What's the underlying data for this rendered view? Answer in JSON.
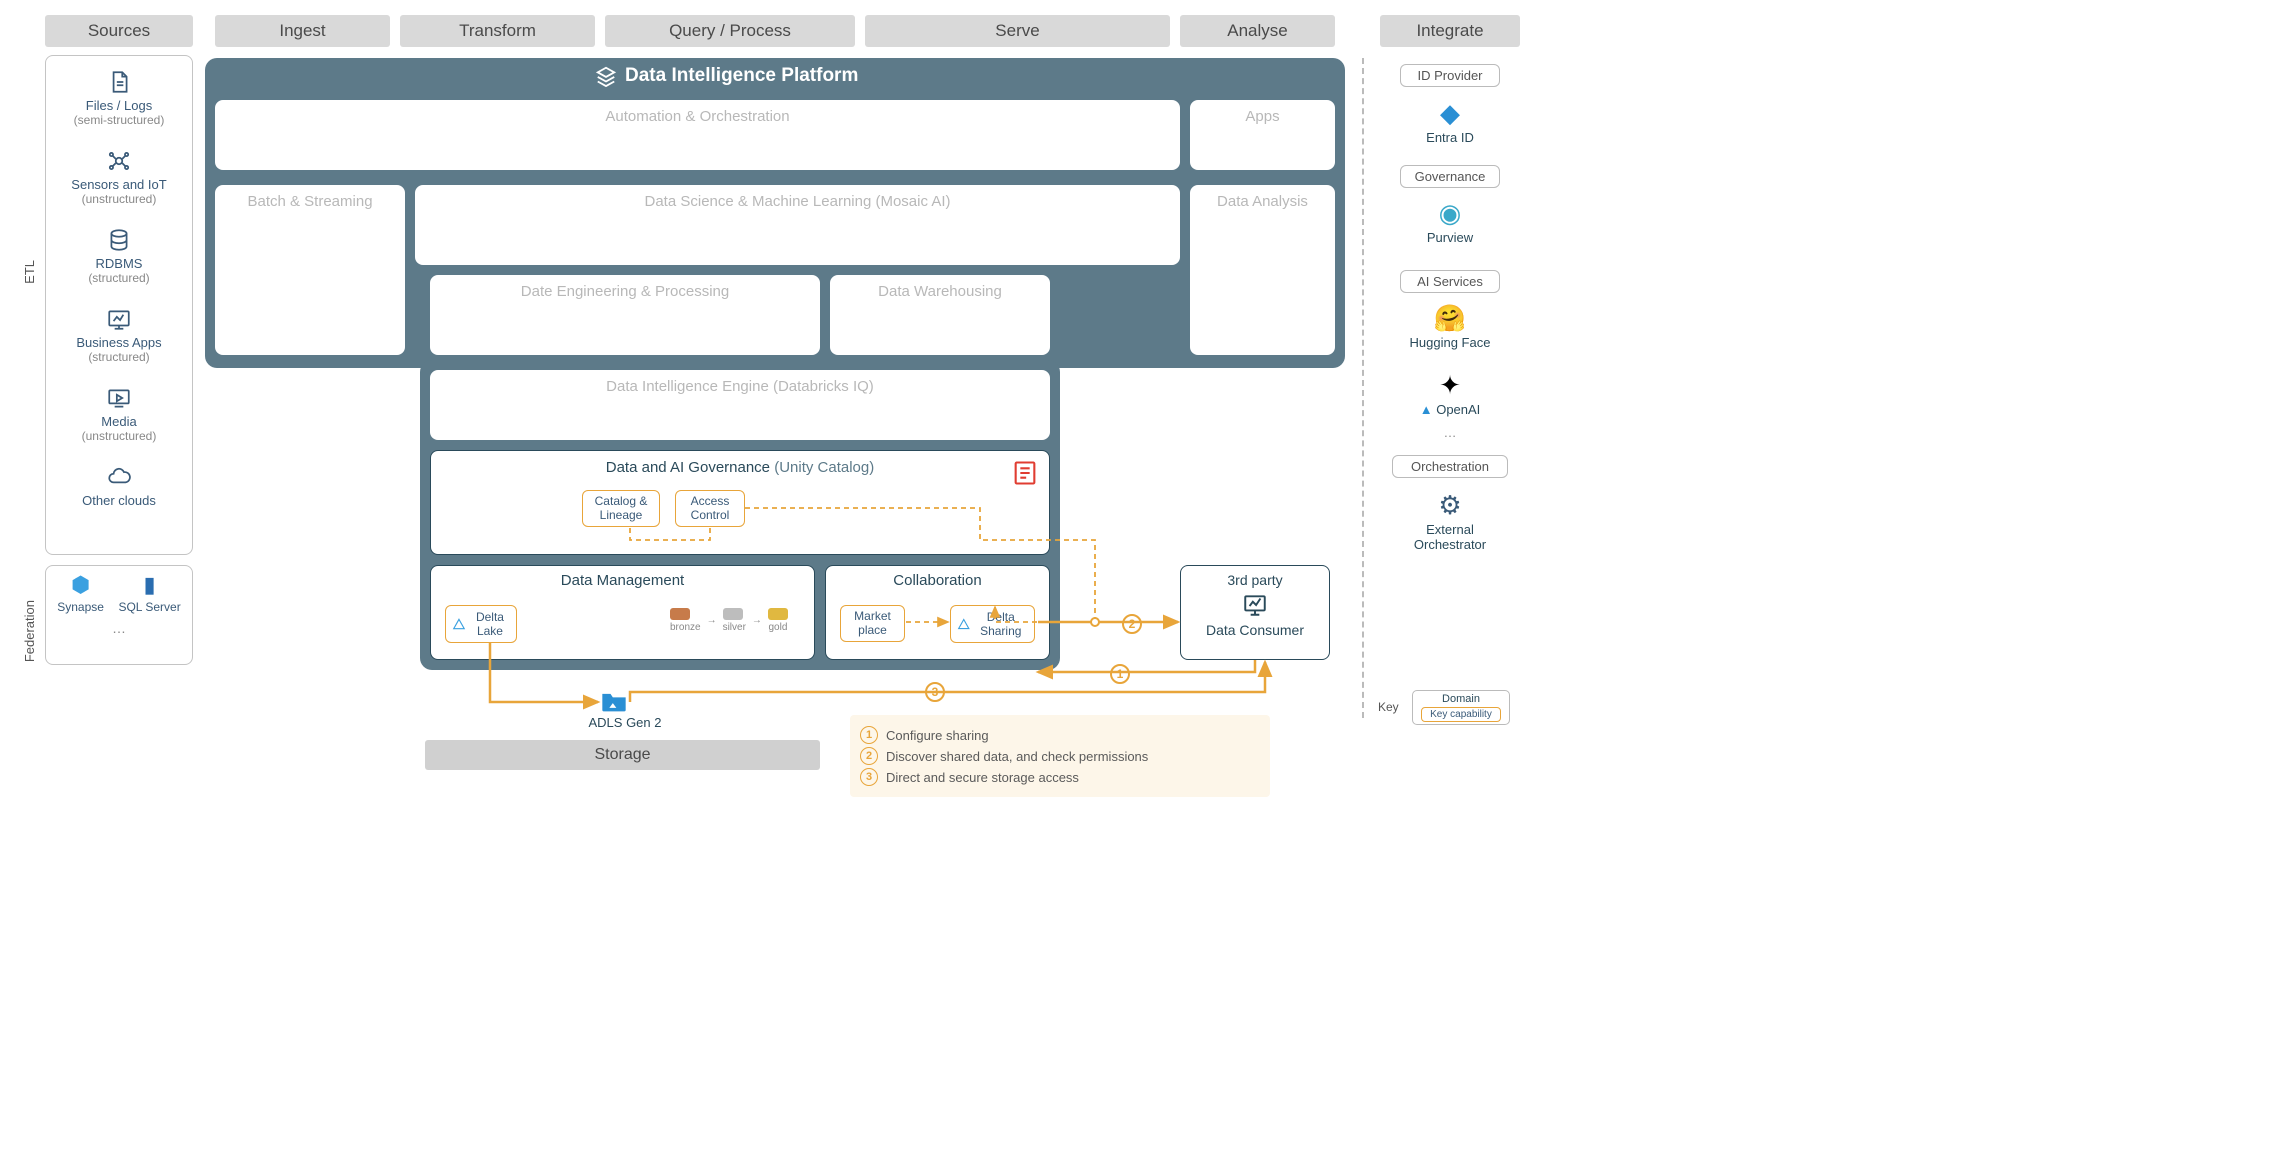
{
  "columns": {
    "sources": "Sources",
    "ingest": "Ingest",
    "transform": "Transform",
    "query": "Query / Process",
    "serve": "Serve",
    "analyse": "Analyse",
    "integrate": "Integrate"
  },
  "vlabels": {
    "etl": "ETL",
    "federation": "Federation"
  },
  "sources": [
    {
      "label": "Files / Logs",
      "sub": "(semi-structured)",
      "icon": "file"
    },
    {
      "label": "Sensors and IoT",
      "sub": "(unstructured)",
      "icon": "iot"
    },
    {
      "label": "RDBMS",
      "sub": "(structured)",
      "icon": "db"
    },
    {
      "label": "Business Apps",
      "sub": "(structured)",
      "icon": "app"
    },
    {
      "label": "Media",
      "sub": "(unstructured)",
      "icon": "media"
    },
    {
      "label": "Other clouds",
      "sub": "",
      "icon": "cloud"
    }
  ],
  "federation": {
    "items": [
      {
        "label": "Synapse"
      },
      {
        "label": "SQL Server"
      }
    ],
    "more": "…"
  },
  "platform": {
    "title": "Data Intelligence Platform",
    "boxes": {
      "automation": "Automation & Orchestration",
      "apps": "Apps",
      "batch": "Batch & Streaming",
      "dsml": "Data Science & Machine Learning  (Mosaic AI)",
      "analysis": "Data Analysis",
      "eng": "Date Engineering & Processing",
      "dwh": "Data Warehousing",
      "engine": "Data Intelligence Engine  (Databricks IQ)"
    },
    "governance": {
      "title": "Data and AI Governance",
      "anno": "(Unity Catalog)",
      "catalog": "Catalog & Lineage",
      "access": "Access Control"
    },
    "mgmt": {
      "title": "Data Management",
      "delta": "Delta Lake",
      "bronze": "bronze",
      "silver": "silver",
      "gold": "gold"
    },
    "collab": {
      "title": "Collaboration",
      "market": "Market place",
      "sharing": "Delta Sharing"
    }
  },
  "third_party": {
    "title": "3rd party",
    "consumer": "Data Consumer"
  },
  "storage": {
    "adls": "ADLS Gen 2",
    "label": "Storage"
  },
  "steps": [
    {
      "n": "1",
      "text": "Configure sharing"
    },
    {
      "n": "2",
      "text": "Discover shared data, and check permissions"
    },
    {
      "n": "3",
      "text": "Direct and secure storage access"
    }
  ],
  "integrate": {
    "id_provider": "ID Provider",
    "entra": "Entra ID",
    "governance": "Governance",
    "purview": "Purview",
    "ai_services": "AI Services",
    "hf": "Hugging Face",
    "openai": "OpenAI",
    "more": "…",
    "orchestration": "Orchestration",
    "ext": "External Orchestrator"
  },
  "key": {
    "label": "Key",
    "domain": "Domain",
    "cap": "Key capability"
  },
  "colors": {
    "header_bg": "#d9d9d9",
    "platform_bg": "#5d7a89",
    "box_text": "#b8b8b8",
    "outline_dark": "#2a4a5a",
    "orange": "#e8a53a",
    "source_text": "#3a5a78",
    "step_bg": "#fdf6e9",
    "red": "#e03c31"
  }
}
